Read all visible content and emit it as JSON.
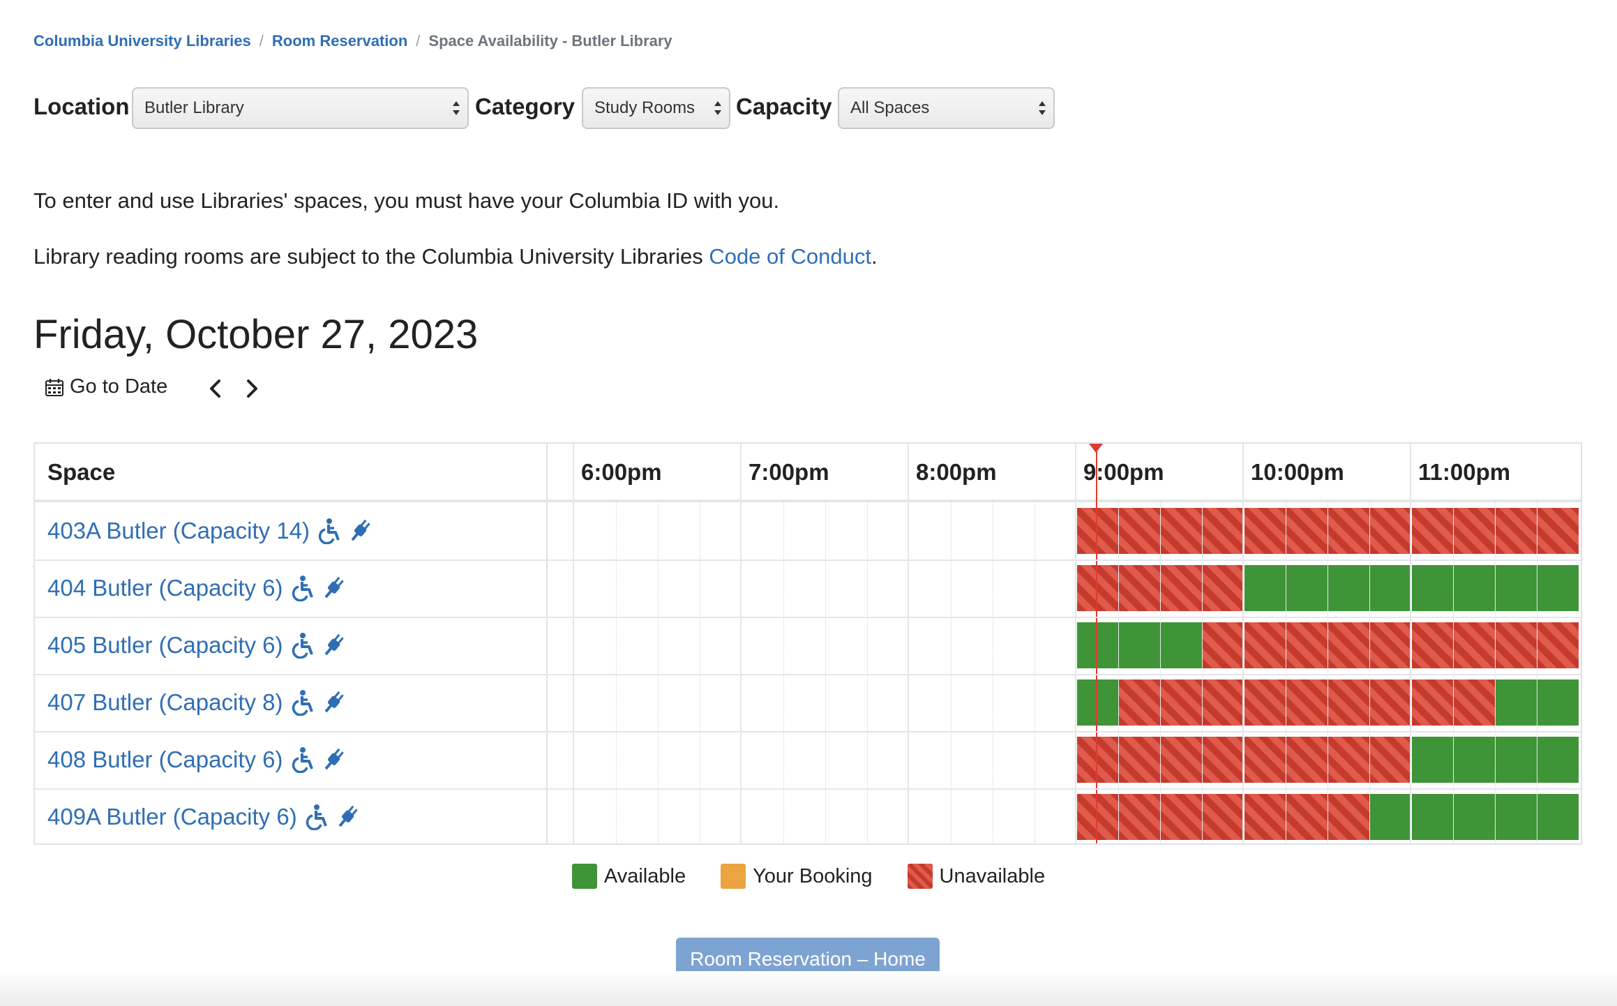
{
  "breadcrumb": {
    "items": [
      "Columbia University Libraries",
      "Room Reservation"
    ],
    "current": "Space Availability - Butler Library",
    "separator": "/"
  },
  "filters": {
    "location_label": "Location",
    "location_value": "Butler Library",
    "category_label": "Category",
    "category_value": "Study Rooms",
    "capacity_label": "Capacity",
    "capacity_value": "All Spaces"
  },
  "notices": {
    "id_notice": "To enter and use Libraries' spaces, you must have your Columbia ID with you.",
    "conduct_prefix": "Library reading rooms are subject to the Columbia University Libraries ",
    "conduct_link": "Code of Conduct",
    "conduct_suffix": "."
  },
  "date_heading": "Friday, October 27, 2023",
  "date_nav": {
    "goto_label": "Go to Date",
    "prev_icon": "chevron-left-icon",
    "next_icon": "chevron-right-icon"
  },
  "grid": {
    "space_header": "Space",
    "time_headers": [
      "6:00pm",
      "7:00pm",
      "8:00pm",
      "9:00pm",
      "10:00pm",
      "11:00pm"
    ],
    "slot_minutes": 15,
    "current_time": "9:07pm",
    "rooms": [
      {
        "name": "403A Butler (Capacity 14)",
        "slots": "UUUUUUUUUUUU"
      },
      {
        "name": "404 Butler (Capacity 6)",
        "slots": "UUUUAAAAAAAA"
      },
      {
        "name": "405 Butler (Capacity 6)",
        "slots": "AAAUUUUUUUUU"
      },
      {
        "name": "407 Butler (Capacity 8)",
        "slots": "AUUUUUUUUUAA"
      },
      {
        "name": "408 Butler (Capacity 6)",
        "slots": "UUUUUUUUAAAA"
      },
      {
        "name": "409A Butler (Capacity 6)",
        "slots": "UUUUUUUAAAAA"
      }
    ],
    "room_icons": [
      "wheelchair-accessible-icon",
      "power-plug-icon"
    ]
  },
  "legend": {
    "available": "Available",
    "your_booking": "Your Booking",
    "unavailable": "Unavailable"
  },
  "colors": {
    "available": "#3f9437",
    "your_booking": "#eba441",
    "unavailable": "#c63a2e",
    "link": "#2f6eb5",
    "current_time": "#e03a2f",
    "home_button": "#7da3d2"
  },
  "home_button_label": "Room Reservation – Home"
}
